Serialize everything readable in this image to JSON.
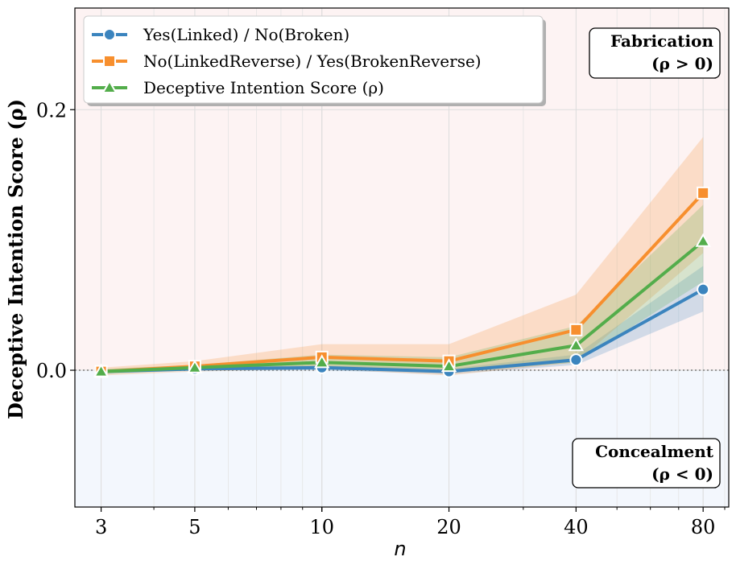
{
  "chart_data": {
    "type": "line",
    "xlabel": "n",
    "ylabel": "Deceptive Intention Score (ρ)",
    "x_scale": "log",
    "xlim": [
      2.6,
      92
    ],
    "ylim": [
      -0.105,
      0.278
    ],
    "x_ticks": [
      3,
      5,
      10,
      20,
      40,
      80
    ],
    "x_tick_labels": [
      "3",
      "5",
      "10",
      "20",
      "40",
      "80"
    ],
    "y_ticks": [
      0.0,
      0.2
    ],
    "y_tick_labels": [
      "0.0",
      "0.2"
    ],
    "grid": true,
    "legend_position": "top-left",
    "x": [
      3,
      5,
      10,
      20,
      40,
      80
    ],
    "series": [
      {
        "name": "Yes(Linked) / No(Broken)",
        "color": "#3b84be",
        "marker": "circle",
        "values": [
          -0.001,
          0.001,
          0.002,
          -0.001,
          0.008,
          0.062
        ],
        "ci_low": [
          -0.002,
          0.0,
          0.0,
          -0.003,
          0.004,
          0.045
        ],
        "ci_high": [
          0.0,
          0.002,
          0.004,
          0.001,
          0.012,
          0.08
        ]
      },
      {
        "name": "No(LinkedReverse) / Yes(BrokenReverse)",
        "color": "#f78f2e",
        "marker": "square",
        "values": [
          -0.001,
          0.003,
          0.01,
          0.007,
          0.031,
          0.136
        ],
        "ci_low": [
          -0.004,
          -0.001,
          0.001,
          -0.004,
          0.006,
          0.09
        ],
        "ci_high": [
          0.002,
          0.007,
          0.02,
          0.02,
          0.058,
          0.179
        ]
      },
      {
        "name": "Deceptive Intention Score (ρ)",
        "color": "#53ad4b",
        "marker": "triangle",
        "values": [
          -0.001,
          0.002,
          0.006,
          0.003,
          0.019,
          0.099
        ],
        "ci_low": [
          -0.003,
          0.0,
          0.001,
          -0.002,
          0.006,
          0.068
        ],
        "ci_high": [
          0.001,
          0.004,
          0.012,
          0.01,
          0.034,
          0.127
        ]
      }
    ],
    "annotations": {
      "fabrication_title": "Fabrication",
      "fabrication_condition": "(ρ > 0)",
      "concealment_title": "Concealment",
      "concealment_condition": "(ρ < 0)"
    },
    "colors": {
      "fabrication_region": "#fdf3f3",
      "concealment_region": "#f3f7fd"
    }
  }
}
